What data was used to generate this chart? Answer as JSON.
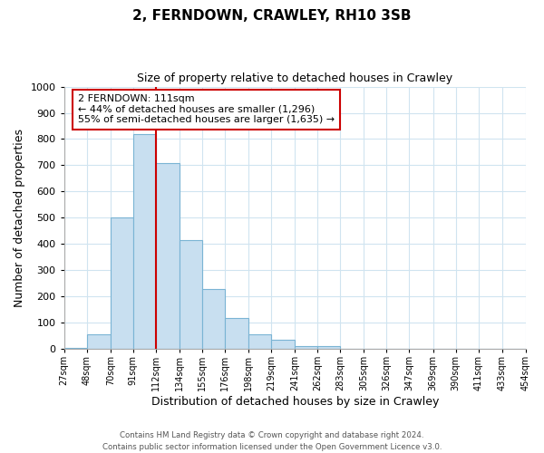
{
  "title": "2, FERNDOWN, CRAWLEY, RH10 3SB",
  "subtitle": "Size of property relative to detached houses in Crawley",
  "xlabel": "Distribution of detached houses by size in Crawley",
  "ylabel": "Number of detached properties",
  "bar_left_edges": [
    27,
    48,
    70,
    91,
    112,
    134,
    155,
    176,
    198,
    219,
    241,
    262,
    283,
    305,
    326,
    347,
    369,
    390,
    411,
    433
  ],
  "bar_heights": [
    5,
    57,
    500,
    820,
    710,
    415,
    230,
    117,
    57,
    35,
    10,
    10,
    0,
    0,
    0,
    0,
    0,
    0,
    0,
    0
  ],
  "bar_color": "#c8dff0",
  "bar_edgecolor": "#7ab4d4",
  "ylim": [
    0,
    1000
  ],
  "yticks": [
    0,
    100,
    200,
    300,
    400,
    500,
    600,
    700,
    800,
    900,
    1000
  ],
  "xtick_labels": [
    "27sqm",
    "48sqm",
    "70sqm",
    "91sqm",
    "112sqm",
    "134sqm",
    "155sqm",
    "176sqm",
    "198sqm",
    "219sqm",
    "241sqm",
    "262sqm",
    "283sqm",
    "305sqm",
    "326sqm",
    "347sqm",
    "369sqm",
    "390sqm",
    "411sqm",
    "433sqm",
    "454sqm"
  ],
  "vline_x": 112,
  "vline_color": "#cc0000",
  "annotation_title": "2 FERNDOWN: 111sqm",
  "annotation_line1": "← 44% of detached houses are smaller (1,296)",
  "annotation_line2": "55% of semi-detached houses are larger (1,635) →",
  "annotation_box_color": "#ffffff",
  "annotation_box_edgecolor": "#cc0000",
  "footer_line1": "Contains HM Land Registry data © Crown copyright and database right 2024.",
  "footer_line2": "Contains public sector information licensed under the Open Government Licence v3.0.",
  "background_color": "#ffffff",
  "grid_color": "#d0e4f0",
  "title_fontsize": 11,
  "subtitle_fontsize": 9,
  "xlabel_fontsize": 9,
  "ylabel_fontsize": 9,
  "figsize": [
    6.0,
    5.0
  ],
  "dpi": 100
}
